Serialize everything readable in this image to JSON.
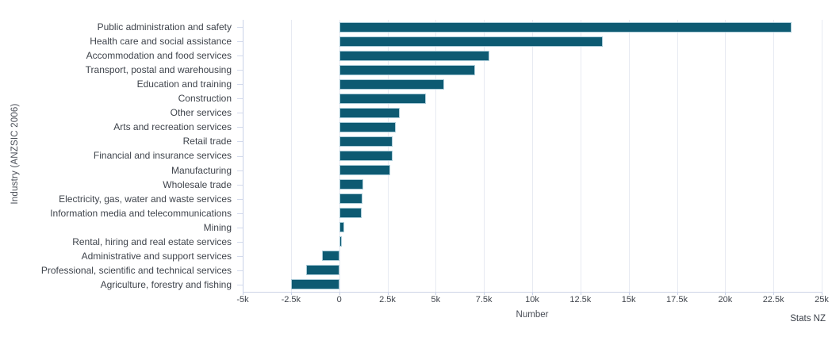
{
  "chart_data": {
    "type": "bar",
    "orientation": "horizontal",
    "xlabel": "Number",
    "ylabel": "Industry (ANZSIC 2006)",
    "source": "Stats NZ",
    "xlim": [
      -5000,
      25000
    ],
    "grid": "vertical",
    "bar_color": "#0d5a72",
    "x_ticks": [
      {
        "value": -5000,
        "label": "-5k"
      },
      {
        "value": -2500,
        "label": "-2.5k"
      },
      {
        "value": 0,
        "label": "0"
      },
      {
        "value": 2500,
        "label": "2.5k"
      },
      {
        "value": 5000,
        "label": "5k"
      },
      {
        "value": 7500,
        "label": "7.5k"
      },
      {
        "value": 10000,
        "label": "10k"
      },
      {
        "value": 12500,
        "label": "12.5k"
      },
      {
        "value": 15000,
        "label": "15k"
      },
      {
        "value": 17500,
        "label": "17.5k"
      },
      {
        "value": 20000,
        "label": "20k"
      },
      {
        "value": 22500,
        "label": "22.5k"
      },
      {
        "value": 25000,
        "label": "25k"
      }
    ],
    "categories": [
      "Public administration and safety",
      "Health care and social assistance",
      "Accommodation and food services",
      "Transport, postal and warehousing",
      "Education and training",
      "Construction",
      "Other services",
      "Arts and recreation services",
      "Retail trade",
      "Financial and insurance services",
      "Manufacturing",
      "Wholesale trade",
      "Electricity, gas, water and waste services",
      "Information media and telecommunications",
      "Mining",
      "Rental, hiring and real estate services",
      "Administrative and support services",
      "Professional, scientific and technical services",
      "Agriculture, forestry and fishing"
    ],
    "values": [
      23450,
      13650,
      7800,
      7050,
      5450,
      4500,
      3150,
      2950,
      2750,
      2750,
      2650,
      1230,
      1190,
      1150,
      260,
      150,
      -890,
      -1710,
      -2490
    ]
  }
}
